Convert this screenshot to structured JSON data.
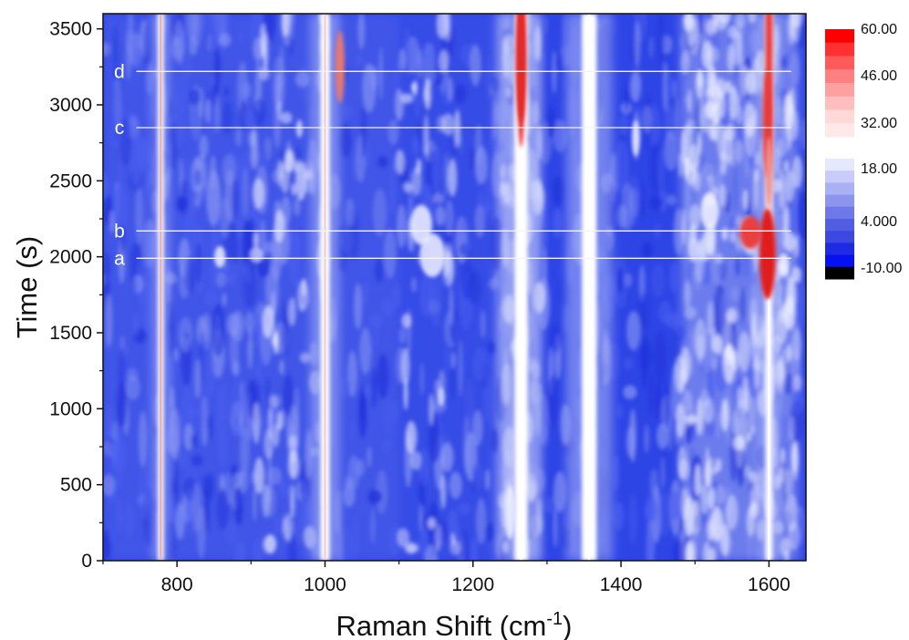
{
  "chart_data": {
    "type": "heatmap",
    "xlabel": "Raman Shift (cm",
    "xlabel_sup": "-1",
    "xlabel_end": ")",
    "ylabel": "Time (s)",
    "xlim": [
      700,
      1650
    ],
    "ylim": [
      0,
      3600
    ],
    "x_ticks": [
      800,
      1000,
      1200,
      1400,
      1600
    ],
    "y_ticks": [
      0,
      500,
      1000,
      1500,
      2000,
      2500,
      3000,
      3500
    ],
    "background_color": "#2e45e6",
    "bands": [
      {
        "x": 778,
        "width": 6,
        "intensity": "high",
        "color": "#ffffff",
        "core_color": "#f3b0a6"
      },
      {
        "x": 1000,
        "width": 10,
        "intensity": "high",
        "color": "#ffffff",
        "core_color": "#f6d0c8"
      },
      {
        "x": 1265,
        "width": 14,
        "intensity": "high",
        "color": "#ffffff",
        "core_color": "#ffffff"
      },
      {
        "x": 1357,
        "width": 16,
        "intensity": "high",
        "color": "#ffffff",
        "core_color": "#ffffff"
      },
      {
        "x": 1600,
        "width": 8,
        "intensity": "medium",
        "color": "#f4f5ff",
        "core_color": "#ffffff"
      }
    ],
    "broad_regions": [
      {
        "x_start": 1230,
        "x_end": 1290,
        "level": 0.45
      },
      {
        "x_start": 1480,
        "x_end": 1640,
        "level": 0.4
      },
      {
        "x_start": 700,
        "x_end": 1100,
        "level": 0.12
      },
      {
        "x_start": 1100,
        "x_end": 1230,
        "level": 0.05
      }
    ],
    "hotspots": [
      {
        "x": 1265,
        "y": 3500,
        "rx": 5,
        "ry": 130,
        "color": "#e8222b"
      },
      {
        "x": 1265,
        "y": 3250,
        "rx": 5,
        "ry": 60,
        "color": "#e02b2b"
      },
      {
        "x": 1020,
        "y": 3250,
        "rx": 5,
        "ry": 40,
        "color": "#e8786e"
      },
      {
        "x": 1600,
        "y": 3450,
        "rx": 4,
        "ry": 150,
        "color": "#e83b3b"
      },
      {
        "x": 1598,
        "y": 2880,
        "rx": 5,
        "ry": 60,
        "color": "#e83b3b"
      },
      {
        "x": 1598,
        "y": 2020,
        "rx": 9,
        "ry": 50,
        "color": "#e01a1a"
      },
      {
        "x": 1575,
        "y": 2160,
        "rx": 12,
        "ry": 18,
        "color": "#e84040"
      },
      {
        "x": 1600,
        "y": 2550,
        "rx": 4,
        "ry": 40,
        "color": "#f09090"
      }
    ],
    "markers": [
      {
        "label": "a",
        "time": 1990
      },
      {
        "label": "b",
        "time": 2170
      },
      {
        "label": "c",
        "time": 2850
      },
      {
        "label": "d",
        "time": 3220
      }
    ],
    "colorbar_upper": {
      "labels": [
        "60.00",
        "46.00",
        "32.00"
      ],
      "colors": [
        "#ff0000",
        "#ff3030",
        "#ff5a5a",
        "#ff8080",
        "#ffa0a0",
        "#ffbebe",
        "#ffd8d8",
        "#ffe8e8"
      ]
    },
    "colorbar_lower": {
      "labels": [
        "18.00",
        "4.000",
        "-10.00"
      ],
      "colors": [
        "#e6e8ff",
        "#c8ccfa",
        "#aab0f4",
        "#8c94ee",
        "#6e78e8",
        "#525ee2",
        "#3c48e0",
        "#1e2ae4",
        "#0610f0",
        "#000000"
      ]
    }
  }
}
